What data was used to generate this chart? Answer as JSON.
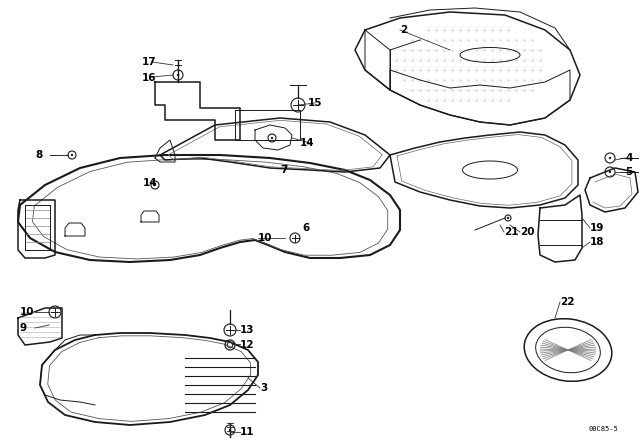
{
  "background_color": "#ffffff",
  "diagram_id": "00C85-5",
  "line_color": "#1a1a1a",
  "label_color": "#000000",
  "fig_width": 6.4,
  "fig_height": 4.48,
  "dpi": 100,
  "note": "00C85-5"
}
